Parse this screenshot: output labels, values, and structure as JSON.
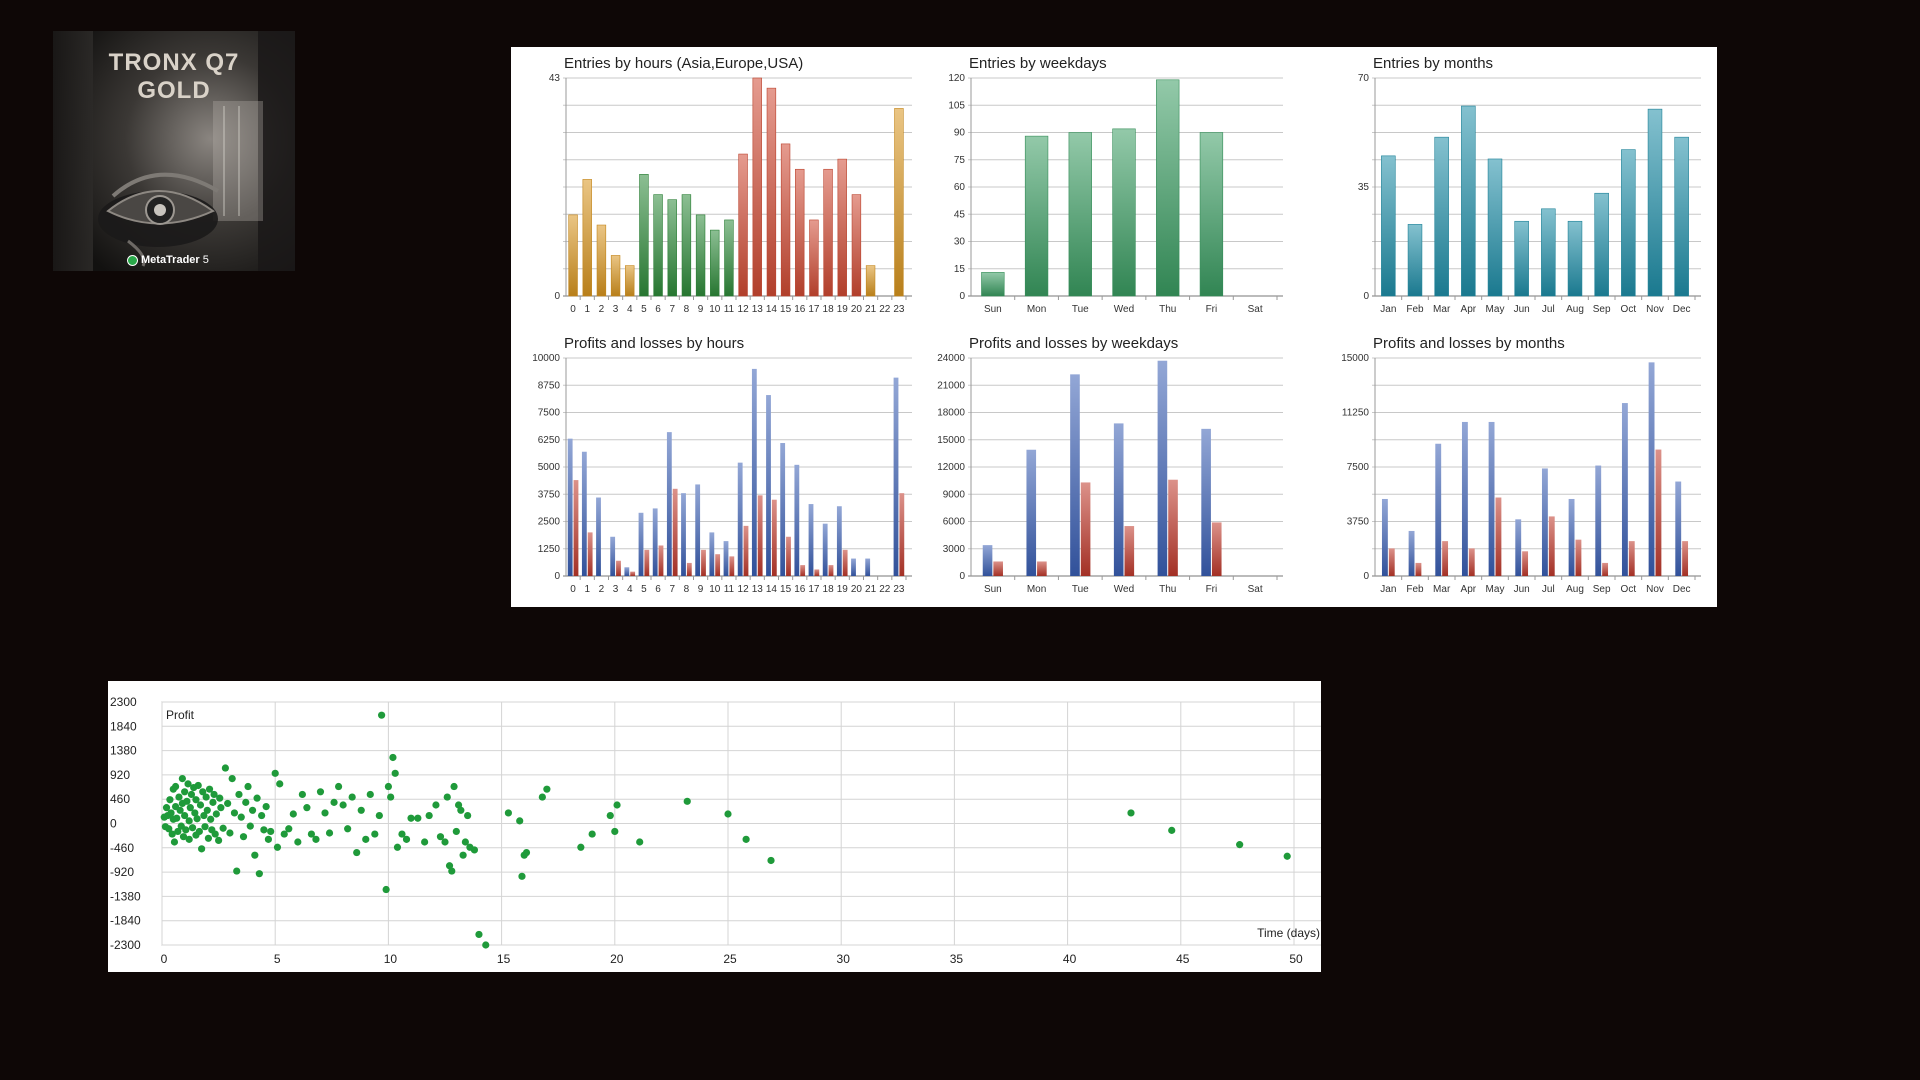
{
  "logo": {
    "line1": "TRONX Q7",
    "line2": "GOLD",
    "badge": "MetaTrader",
    "badge_num": "5",
    "icon": "metatrader-icon"
  },
  "colors": {
    "page_bg": "#0e0706",
    "asia": "#d9951f",
    "europe": "#2e8b3a",
    "usa": "#d04a33",
    "weekday": "#3a9d62",
    "month": "#1f8ea8",
    "profit": "#3a5fb5",
    "loss": "#c0392b",
    "scatter": "#1f9a3a"
  },
  "chart_data": [
    {
      "type": "bar",
      "title": "Entries by hours (Asia,Europe,USA)",
      "categories": [
        "0",
        "1",
        "2",
        "3",
        "4",
        "5",
        "6",
        "7",
        "8",
        "9",
        "10",
        "11",
        "12",
        "13",
        "14",
        "15",
        "16",
        "17",
        "18",
        "19",
        "20",
        "21",
        "22",
        "23"
      ],
      "values": [
        16,
        23,
        14,
        8,
        6,
        24,
        20,
        19,
        20,
        16,
        13,
        15,
        28,
        43,
        41,
        30,
        25,
        15,
        25,
        27,
        20,
        6,
        0,
        37
      ],
      "bar_groups": [
        "asia",
        "asia",
        "asia",
        "asia",
        "asia",
        "europe",
        "europe",
        "europe",
        "europe",
        "europe",
        "europe",
        "europe",
        "usa",
        "usa",
        "usa",
        "usa",
        "usa",
        "usa",
        "usa",
        "usa",
        "usa",
        "asia",
        "asia",
        "asia"
      ],
      "ylim": [
        0,
        43
      ],
      "yticks": [
        "0",
        "43"
      ],
      "grid": true
    },
    {
      "type": "bar",
      "title": "Entries by weekdays",
      "categories": [
        "Sun",
        "Mon",
        "Tue",
        "Wed",
        "Thu",
        "Fri",
        "Sat"
      ],
      "values": [
        13,
        88,
        90,
        92,
        119,
        90,
        0
      ],
      "ylim": [
        0,
        120
      ],
      "yticks": [
        "0",
        "15",
        "30",
        "45",
        "60",
        "75",
        "90",
        "105",
        "120"
      ],
      "grid": true
    },
    {
      "type": "bar",
      "title": "Entries by months",
      "categories": [
        "Jan",
        "Feb",
        "Mar",
        "Apr",
        "May",
        "Jun",
        "Jul",
        "Aug",
        "Sep",
        "Oct",
        "Nov",
        "Dec"
      ],
      "values": [
        45,
        23,
        51,
        61,
        44,
        24,
        28,
        24,
        33,
        47,
        60,
        51
      ],
      "ylim": [
        0,
        70
      ],
      "yticks": [
        "0",
        "35",
        "70"
      ],
      "grid": true
    },
    {
      "type": "bar",
      "title": "Profits and losses by hours",
      "categories": [
        "0",
        "1",
        "2",
        "3",
        "4",
        "5",
        "6",
        "7",
        "8",
        "9",
        "10",
        "11",
        "12",
        "13",
        "14",
        "15",
        "16",
        "17",
        "18",
        "19",
        "20",
        "21",
        "22",
        "23"
      ],
      "series": [
        {
          "values": [
            6300,
            5700,
            3600,
            1800,
            400,
            2900,
            3100,
            6600,
            3800,
            4200,
            2000,
            1600,
            5200,
            9500,
            8300,
            6100,
            5100,
            3300,
            2400,
            3200,
            800,
            800,
            0,
            9100
          ]
        },
        {
          "values": [
            4400,
            2000,
            0,
            700,
            200,
            1200,
            1400,
            4000,
            600,
            1200,
            1000,
            900,
            2300,
            3700,
            3500,
            1800,
            500,
            300,
            500,
            1200,
            0,
            0,
            0,
            3800
          ]
        }
      ],
      "ylim": [
        0,
        10000
      ],
      "yticks": [
        "0",
        "1250",
        "2500",
        "3750",
        "5000",
        "6250",
        "7500",
        "8750",
        "10000"
      ],
      "grid": true
    },
    {
      "type": "bar",
      "title": "Profits and losses by weekdays",
      "categories": [
        "Sun",
        "Mon",
        "Tue",
        "Wed",
        "Thu",
        "Fri",
        "Sat"
      ],
      "series": [
        {
          "values": [
            3400,
            13900,
            22200,
            16800,
            23700,
            16200,
            0
          ]
        },
        {
          "values": [
            1600,
            1600,
            10300,
            5500,
            10600,
            5900,
            0
          ]
        }
      ],
      "ylim": [
        0,
        24000
      ],
      "yticks": [
        "0",
        "3000",
        "6000",
        "9000",
        "12000",
        "15000",
        "18000",
        "21000",
        "24000"
      ],
      "grid": true
    },
    {
      "type": "bar",
      "title": "Profits and losses by months",
      "categories": [
        "Jan",
        "Feb",
        "Mar",
        "Apr",
        "May",
        "Jun",
        "Jul",
        "Aug",
        "Sep",
        "Oct",
        "Nov",
        "Dec"
      ],
      "series": [
        {
          "values": [
            5300,
            3100,
            9100,
            10600,
            10600,
            3900,
            7400,
            5300,
            7600,
            11900,
            14700,
            6500
          ]
        },
        {
          "values": [
            1900,
            900,
            2400,
            1900,
            5400,
            1700,
            4100,
            2500,
            900,
            2400,
            8700,
            2400
          ]
        }
      ],
      "ylim": [
        0,
        15000
      ],
      "yticks": [
        "0",
        "3750",
        "7500",
        "11250",
        "15000"
      ],
      "grid": true
    },
    {
      "type": "scatter",
      "xlabel": "Time (days)",
      "ylabel": "Profit",
      "xlim": [
        0,
        50
      ],
      "ylim": [
        -2300,
        2300
      ],
      "xticks": [
        "0",
        "5",
        "10",
        "15",
        "20",
        "25",
        "30",
        "35",
        "40",
        "45",
        "50"
      ],
      "yticks": [
        "2300",
        "1840",
        "1380",
        "920",
        "460",
        "0",
        "-460",
        "-920",
        "-1380",
        "-1840",
        "-2300"
      ],
      "grid": true,
      "points": [
        [
          0.1,
          120
        ],
        [
          0.15,
          -60
        ],
        [
          0.2,
          300
        ],
        [
          0.25,
          150
        ],
        [
          0.3,
          -100
        ],
        [
          0.35,
          450
        ],
        [
          0.4,
          200
        ],
        [
          0.45,
          -200
        ],
        [
          0.5,
          650
        ],
        [
          0.5,
          80
        ],
        [
          0.55,
          -350
        ],
        [
          0.6,
          320
        ],
        [
          0.6,
          700
        ],
        [
          0.65,
          100
        ],
        [
          0.7,
          -150
        ],
        [
          0.75,
          500
        ],
        [
          0.8,
          250
        ],
        [
          0.85,
          -50
        ],
        [
          0.9,
          850
        ],
        [
          0.9,
          380
        ],
        [
          0.95,
          -250
        ],
        [
          1.0,
          600
        ],
        [
          1.0,
          150
        ],
        [
          1.05,
          -120
        ],
        [
          1.1,
          420
        ],
        [
          1.15,
          750
        ],
        [
          1.2,
          50
        ],
        [
          1.2,
          -300
        ],
        [
          1.25,
          300
        ],
        [
          1.3,
          550
        ],
        [
          1.35,
          -80
        ],
        [
          1.4,
          680
        ],
        [
          1.45,
          200
        ],
        [
          1.5,
          -220
        ],
        [
          1.5,
          450
        ],
        [
          1.55,
          90
        ],
        [
          1.6,
          720
        ],
        [
          1.65,
          -150
        ],
        [
          1.7,
          350
        ],
        [
          1.75,
          -480
        ],
        [
          1.8,
          600
        ],
        [
          1.85,
          150
        ],
        [
          1.9,
          -60
        ],
        [
          1.95,
          500
        ],
        [
          2.0,
          250
        ],
        [
          2.05,
          -280
        ],
        [
          2.1,
          650
        ],
        [
          2.15,
          80
        ],
        [
          2.2,
          -120
        ],
        [
          2.25,
          400
        ],
        [
          2.3,
          550
        ],
        [
          2.35,
          -200
        ],
        [
          2.4,
          180
        ],
        [
          2.5,
          -320
        ],
        [
          2.55,
          480
        ],
        [
          2.6,
          300
        ],
        [
          2.7,
          -90
        ],
        [
          2.8,
          1050
        ],
        [
          2.9,
          380
        ],
        [
          3.0,
          -180
        ],
        [
          3.1,
          850
        ],
        [
          3.2,
          200
        ],
        [
          3.3,
          -900
        ],
        [
          3.4,
          550
        ],
        [
          3.5,
          120
        ],
        [
          3.6,
          -250
        ],
        [
          3.7,
          400
        ],
        [
          3.8,
          700
        ],
        [
          3.9,
          -50
        ],
        [
          4.0,
          250
        ],
        [
          4.1,
          -600
        ],
        [
          4.2,
          480
        ],
        [
          4.3,
          -950
        ],
        [
          4.4,
          150
        ],
        [
          4.5,
          -120
        ],
        [
          4.6,
          320
        ],
        [
          4.7,
          -300
        ],
        [
          4.8,
          -150
        ],
        [
          5.0,
          950
        ],
        [
          5.1,
          -450
        ],
        [
          5.2,
          750
        ],
        [
          5.4,
          -200
        ],
        [
          5.6,
          -100
        ],
        [
          5.8,
          180
        ],
        [
          6.0,
          -350
        ],
        [
          6.2,
          550
        ],
        [
          6.4,
          300
        ],
        [
          6.6,
          -200
        ],
        [
          6.8,
          -300
        ],
        [
          7.0,
          600
        ],
        [
          7.2,
          200
        ],
        [
          7.4,
          -180
        ],
        [
          7.6,
          400
        ],
        [
          7.8,
          700
        ],
        [
          8.0,
          350
        ],
        [
          8.2,
          -100
        ],
        [
          8.4,
          500
        ],
        [
          8.6,
          -550
        ],
        [
          8.8,
          250
        ],
        [
          9.0,
          -300
        ],
        [
          9.2,
          550
        ],
        [
          9.4,
          -200
        ],
        [
          9.6,
          150
        ],
        [
          9.7,
          2050
        ],
        [
          9.9,
          -1250
        ],
        [
          10.0,
          700
        ],
        [
          10.1,
          500
        ],
        [
          10.2,
          1250
        ],
        [
          10.3,
          950
        ],
        [
          10.4,
          -450
        ],
        [
          10.6,
          -200
        ],
        [
          10.8,
          -300
        ],
        [
          11.0,
          100
        ],
        [
          11.3,
          100
        ],
        [
          11.6,
          -350
        ],
        [
          11.8,
          150
        ],
        [
          12.1,
          350
        ],
        [
          12.3,
          -250
        ],
        [
          12.5,
          -350
        ],
        [
          12.6,
          500
        ],
        [
          12.7,
          -800
        ],
        [
          12.8,
          -900
        ],
        [
          12.9,
          700
        ],
        [
          13.0,
          -150
        ],
        [
          13.1,
          350
        ],
        [
          13.2,
          250
        ],
        [
          13.3,
          -600
        ],
        [
          13.4,
          -350
        ],
        [
          13.5,
          150
        ],
        [
          13.6,
          -450
        ],
        [
          13.8,
          -500
        ],
        [
          14.0,
          -2100
        ],
        [
          14.3,
          -2300
        ],
        [
          15.3,
          200
        ],
        [
          15.8,
          50
        ],
        [
          15.9,
          -1000
        ],
        [
          16.0,
          -600
        ],
        [
          16.1,
          -550
        ],
        [
          16.8,
          500
        ],
        [
          17.0,
          650
        ],
        [
          18.5,
          -450
        ],
        [
          19.0,
          -200
        ],
        [
          19.8,
          150
        ],
        [
          20.0,
          -150
        ],
        [
          20.1,
          350
        ],
        [
          21.1,
          -350
        ],
        [
          23.2,
          420
        ],
        [
          25.0,
          180
        ],
        [
          25.8,
          -300
        ],
        [
          26.9,
          -700
        ],
        [
          42.8,
          200
        ],
        [
          44.6,
          -130
        ],
        [
          47.6,
          -400
        ],
        [
          49.7,
          -620
        ]
      ]
    }
  ]
}
